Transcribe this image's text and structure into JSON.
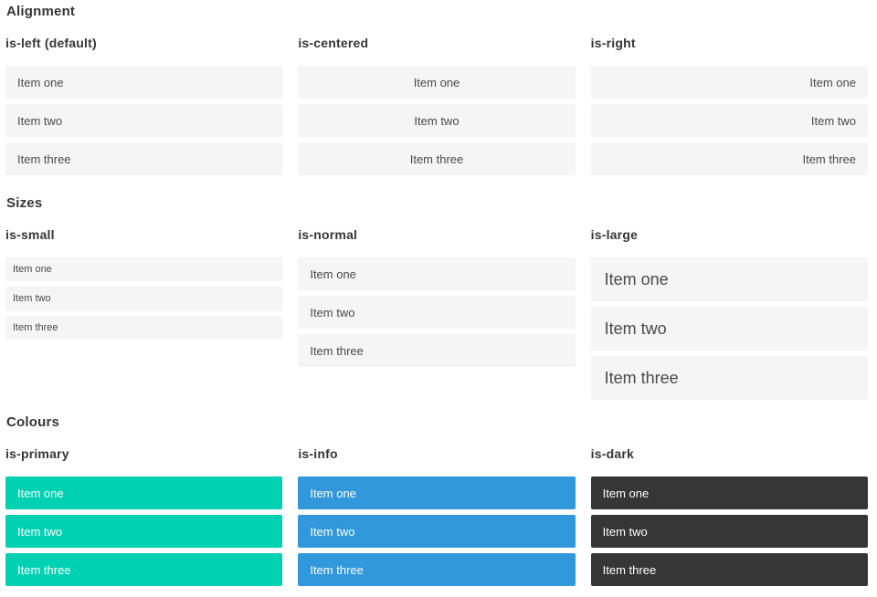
{
  "colors": {
    "primary": "#00d1b2",
    "info": "#3298dc",
    "dark": "#363636",
    "itemBg": "#f5f5f5",
    "itemText": "#4a4a4a",
    "headingText": "#363636",
    "coloredText": "#ffffff"
  },
  "sections": [
    {
      "title": "Alignment",
      "columns": [
        {
          "label": "is-left (default)",
          "items": [
            "Item one",
            "Item two",
            "Item three"
          ]
        },
        {
          "label": "is-centered",
          "items": [
            "Item one",
            "Item two",
            "Item three"
          ]
        },
        {
          "label": "is-right",
          "items": [
            "Item one",
            "Item two",
            "Item three"
          ]
        }
      ]
    },
    {
      "title": "Sizes",
      "columns": [
        {
          "label": "is-small",
          "items": [
            "Item one",
            "Item two",
            "Item three"
          ]
        },
        {
          "label": "is-normal",
          "items": [
            "Item one",
            "Item two",
            "Item three"
          ]
        },
        {
          "label": "is-large",
          "items": [
            "Item one",
            "Item two",
            "Item three"
          ]
        }
      ]
    },
    {
      "title": "Colours",
      "columns": [
        {
          "label": "is-primary",
          "items": [
            "Item one",
            "Item two",
            "Item three"
          ]
        },
        {
          "label": "is-info",
          "items": [
            "Item one",
            "Item two",
            "Item three"
          ]
        },
        {
          "label": "is-dark",
          "items": [
            "Item one",
            "Item two",
            "Item three"
          ]
        }
      ]
    }
  ]
}
